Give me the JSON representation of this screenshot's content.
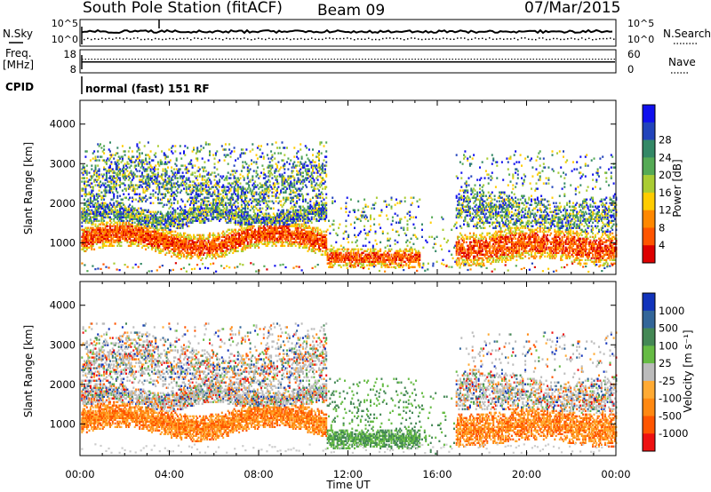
{
  "header": {
    "station": "South Pole Station (fitACF)",
    "beam": "Beam 09",
    "date": "07/Mar/2015"
  },
  "params": {
    "nsky_label": "N.Sky",
    "nsearch_label": "N.Search",
    "freq_label_line1": "Freq.",
    "freq_label_line2": "[MHz]",
    "nave_label": "Nave",
    "cpid_label": "CPID",
    "cpid_value": "normal (fast) 151 RF",
    "noise_left_ticks": [
      "10^5",
      "10^0"
    ],
    "noise_right_ticks": [
      "10^5",
      "10^0"
    ],
    "freq_ticks": [
      "18",
      "8"
    ],
    "nave_ticks": [
      "60",
      "0"
    ],
    "noise_sky_level": 0.55,
    "noise_search_level": 0.3,
    "freq_level": 0.55,
    "nave_level": 0.55
  },
  "chart_data": [
    {
      "type": "heatmap",
      "panel": "power",
      "xlabel": "",
      "ylabel": "Slant Range [km]",
      "xlim": [
        0,
        24
      ],
      "ylim": [
        200,
        4600
      ],
      "yticks": [
        1000,
        2000,
        3000,
        4000
      ],
      "ytick_labels": [
        "1000",
        "2000",
        "3000",
        "4000"
      ],
      "colorbar": {
        "label": "Power [dB]",
        "tick_labels": [
          "4",
          "8",
          "12",
          "16",
          "20",
          "24",
          "28"
        ],
        "colors": [
          "#1010ee",
          "#2244bb",
          "#338866",
          "#55aa55",
          "#aacc33",
          "#ffcc00",
          "#ff8800",
          "#ff5500",
          "#dd0000"
        ]
      }
    },
    {
      "type": "heatmap",
      "panel": "velocity",
      "xlabel": "Time UT",
      "ylabel": "Slant Range [km]",
      "xlim": [
        0,
        24
      ],
      "ylim": [
        200,
        4600
      ],
      "yticks": [
        1000,
        2000,
        3000,
        4000
      ],
      "ytick_labels": [
        "1000",
        "2000",
        "3000",
        "4000"
      ],
      "xticks": [
        0,
        4,
        8,
        12,
        16,
        20,
        24
      ],
      "xtick_labels": [
        "00:00",
        "04:00",
        "08:00",
        "12:00",
        "16:00",
        "20:00",
        "00:00"
      ],
      "colorbar": {
        "label": "Velocity [m s⁻¹]",
        "tick_labels": [
          "1000",
          "500",
          "100",
          "25",
          "-25",
          "-100",
          "-500",
          "-1000"
        ],
        "colors": [
          "#1133bb",
          "#336699",
          "#448855",
          "#66bb44",
          "#bbbbbb",
          "#ffaa33",
          "#ff8811",
          "#ff5500",
          "#ee1111"
        ]
      }
    }
  ]
}
